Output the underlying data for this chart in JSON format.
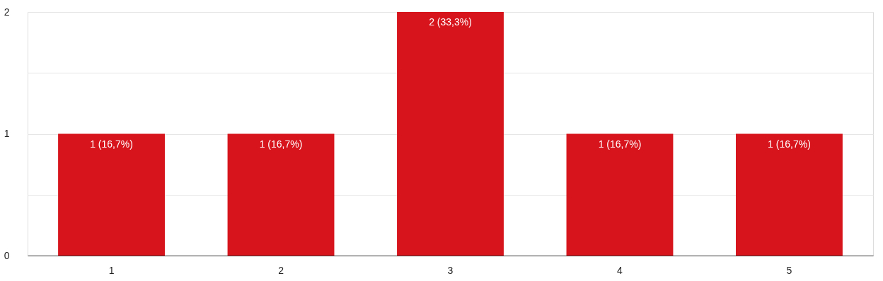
{
  "chart_data": {
    "type": "bar",
    "categories": [
      "1",
      "2",
      "3",
      "4",
      "5"
    ],
    "values": [
      1,
      1,
      2,
      1,
      1
    ],
    "value_labels": [
      "1 (16,7%)",
      "1 (16,7%)",
      "2 (33,3%)",
      "1 (16,7%)",
      "1 (16,7%)"
    ],
    "color": "#d7141c",
    "ylim": [
      0,
      2
    ],
    "yticks": [
      0,
      {
        "value": 0.5,
        "label": null
      },
      1,
      {
        "value": 1.5,
        "label": null
      },
      2
    ],
    "grid": "y"
  }
}
